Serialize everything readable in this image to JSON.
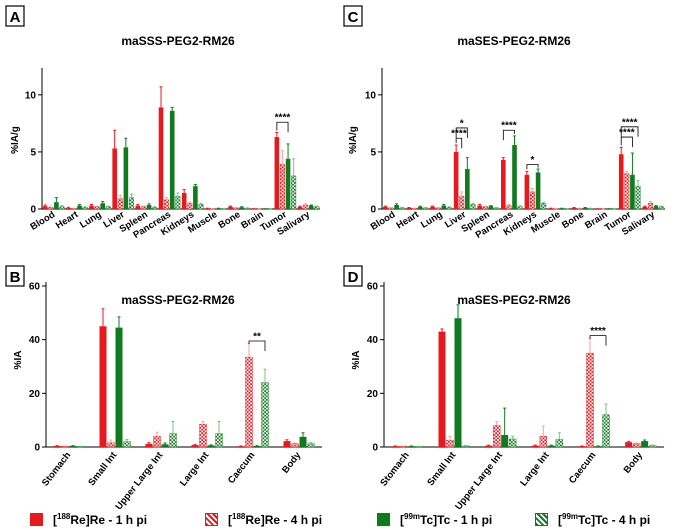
{
  "colors": {
    "re": "#e6191e",
    "tc": "#0f7a1e",
    "re_light": "#f4a3a3",
    "tc_light": "#7cc47f"
  },
  "legend": [
    {
      "pre": "[",
      "sup": "188",
      "post": "Re]Re - 1 h pi",
      "style": "solid",
      "color": "re"
    },
    {
      "pre": "[",
      "sup": "188",
      "post": "Re]Re - 4 h pi",
      "style": "hatched",
      "color": "re"
    },
    {
      "pre": "[",
      "sup": "99m",
      "post": "Tc]Tc - 1 h pi",
      "style": "solid",
      "color": "tc"
    },
    {
      "pre": "[",
      "sup": "99m",
      "post": "Tc]Tc - 4 h pi",
      "style": "hatched",
      "color": "tc"
    }
  ],
  "chart_data": [
    {
      "panel": "A",
      "type": "bar",
      "title": "maSSS-PEG2-RM26",
      "ylabel": "%IA/g",
      "ylim": [
        0,
        12
      ],
      "yticks": [
        0,
        5,
        10
      ],
      "categories": [
        "Blood",
        "Heart",
        "Lung",
        "Liver",
        "Spleen",
        "Pancreas",
        "Kidneys",
        "Muscle",
        "Bone",
        "Brain",
        "Tumor",
        "Salivary"
      ],
      "series": [
        {
          "name": "[188Re]Re - 1 h pi",
          "values": [
            0.25,
            0.1,
            0.3,
            5.3,
            0.3,
            8.9,
            1.4,
            0.05,
            0.2,
            0.02,
            6.3,
            0.2
          ],
          "errors": [
            0.1,
            0.05,
            0.1,
            1.6,
            0.1,
            1.8,
            0.3,
            0.02,
            0.05,
            0.01,
            0.4,
            0.05
          ]
        },
        {
          "name": "[188Re]Re - 4 h pi",
          "values": [
            0.15,
            0.05,
            0.2,
            0.9,
            0.2,
            0.8,
            0.5,
            0.02,
            0.1,
            0.01,
            3.9,
            0.35
          ],
          "errors": [
            0.05,
            0.02,
            0.05,
            0.3,
            0.05,
            0.2,
            0.1,
            0.01,
            0.03,
            0.01,
            1.2,
            0.1
          ]
        },
        {
          "name": "[99mTc]Tc - 1 h pi",
          "values": [
            0.6,
            0.3,
            0.5,
            5.4,
            0.35,
            8.6,
            2.0,
            0.05,
            0.15,
            0.02,
            4.4,
            0.3
          ],
          "errors": [
            0.4,
            0.1,
            0.15,
            0.8,
            0.1,
            0.3,
            0.15,
            0.02,
            0.05,
            0.01,
            1.3,
            0.05
          ]
        },
        {
          "name": "[99mTc]Tc - 4 h pi",
          "values": [
            0.2,
            0.15,
            0.2,
            1.0,
            0.15,
            1.1,
            0.4,
            0.02,
            0.08,
            0.01,
            2.9,
            0.2
          ],
          "errors": [
            0.1,
            0.05,
            0.05,
            0.3,
            0.05,
            0.3,
            0.1,
            0.01,
            0.02,
            0.01,
            1.5,
            0.05
          ]
        }
      ],
      "annotations": [
        {
          "category": "Tumor",
          "from_series": 0,
          "to_series": 2,
          "label": "****",
          "level": 7.6
        }
      ]
    },
    {
      "panel": "C",
      "type": "bar",
      "title": "maSES-PEG2-RM26",
      "ylabel": "%IA/g",
      "ylim": [
        0,
        12
      ],
      "yticks": [
        0,
        5,
        10
      ],
      "categories": [
        "Blood",
        "Heart",
        "Lung",
        "Liver",
        "Spleen",
        "Pancreas",
        "Kidneys",
        "Muscle",
        "Bone",
        "Brain",
        "Tumor",
        "Salivary"
      ],
      "series": [
        {
          "name": "[188Re]Re - 1 h pi",
          "values": [
            0.2,
            0.1,
            0.2,
            5.0,
            0.3,
            4.3,
            3.0,
            0.05,
            0.1,
            0.02,
            4.8,
            0.2
          ],
          "errors": [
            0.05,
            0.03,
            0.05,
            0.6,
            0.1,
            0.2,
            0.3,
            0.02,
            0.03,
            0.01,
            0.6,
            0.05
          ]
        },
        {
          "name": "[188Re]Re - 4 h pi",
          "values": [
            0.1,
            0.05,
            0.1,
            1.1,
            0.2,
            0.3,
            1.5,
            0.02,
            0.05,
            0.01,
            3.1,
            0.5
          ],
          "errors": [
            0.03,
            0.02,
            0.03,
            0.4,
            0.05,
            0.1,
            0.3,
            0.01,
            0.02,
            0.01,
            0.2,
            0.15
          ]
        },
        {
          "name": "[99mTc]Tc - 1 h pi",
          "values": [
            0.35,
            0.2,
            0.3,
            3.5,
            0.25,
            5.6,
            3.2,
            0.05,
            0.1,
            0.02,
            3.0,
            0.25
          ],
          "errors": [
            0.1,
            0.05,
            0.1,
            1.0,
            0.05,
            0.8,
            0.3,
            0.02,
            0.03,
            0.01,
            1.9,
            0.05
          ]
        },
        {
          "name": "[99mTc]Tc - 4 h pi",
          "values": [
            0.1,
            0.1,
            0.15,
            0.4,
            0.1,
            0.2,
            0.5,
            0.02,
            0.05,
            0.01,
            2.0,
            0.2
          ],
          "errors": [
            0.05,
            0.03,
            0.05,
            0.1,
            0.03,
            0.1,
            0.1,
            0.01,
            0.02,
            0.01,
            0.5,
            0.05
          ]
        }
      ],
      "annotations": [
        {
          "category": "Liver",
          "from_series": 0,
          "to_series": 2,
          "label": "*",
          "level": 7.1
        },
        {
          "category": "Liver",
          "from_series": 0,
          "to_series": 1,
          "label": "****",
          "level": 6.2
        },
        {
          "category": "Pancreas",
          "from_series": 0,
          "to_series": 2,
          "label": "****",
          "level": 6.9
        },
        {
          "category": "Kidneys",
          "from_series": 0,
          "to_series": 2,
          "label": "*",
          "level": 3.9
        },
        {
          "category": "Tumor",
          "from_series": 0,
          "to_series": 3,
          "label": "****",
          "level": 7.2
        },
        {
          "category": "Tumor",
          "from_series": 0,
          "to_series": 2,
          "label": "****",
          "level": 6.3
        }
      ]
    },
    {
      "panel": "B",
      "type": "bar",
      "title": "maSSS-PEG2-RM26",
      "ylabel": "%IA",
      "ylim": [
        0,
        60
      ],
      "yticks": [
        0,
        20,
        40,
        60
      ],
      "categories": [
        "Stomach",
        "Small Int",
        "Upper Large Int",
        "Large Int",
        "Caecum",
        "Body"
      ],
      "series": [
        {
          "name": "[188Re]Re - 1 h pi",
          "values": [
            0.4,
            45.0,
            1.2,
            0.7,
            0.3,
            2.2
          ],
          "errors": [
            0.1,
            6.5,
            0.4,
            0.2,
            0.1,
            0.5
          ]
        },
        {
          "name": "[188Re]Re - 4 h pi",
          "values": [
            0.3,
            1.6,
            4.0,
            8.5,
            33.5,
            1.2
          ],
          "errors": [
            0.1,
            1.0,
            1.5,
            1.0,
            5.0,
            0.3
          ]
        },
        {
          "name": "[99mTc]Tc - 1 h pi",
          "values": [
            0.4,
            44.5,
            1.0,
            0.6,
            0.4,
            3.8
          ],
          "errors": [
            0.1,
            4.0,
            0.5,
            0.2,
            0.1,
            1.5
          ]
        },
        {
          "name": "[99mTc]Tc - 4 h pi",
          "values": [
            0.2,
            2.0,
            5.0,
            5.0,
            24.0,
            1.2
          ],
          "errors": [
            0.1,
            0.8,
            4.5,
            4.5,
            5.0,
            0.5
          ]
        }
      ],
      "annotations": [
        {
          "category": "Caecum",
          "from_series": 1,
          "to_series": 3,
          "label": "**",
          "level": 39.5
        }
      ]
    },
    {
      "panel": "D",
      "type": "bar",
      "title": "maSES-PEG2-RM26",
      "ylabel": "%IA",
      "ylim": [
        0,
        60
      ],
      "yticks": [
        0,
        20,
        40,
        60
      ],
      "categories": [
        "Stomach",
        "Small Int",
        "Upper Large Int",
        "Large Int",
        "Caecum",
        "Body"
      ],
      "series": [
        {
          "name": "[188Re]Re - 1 h pi",
          "values": [
            0.3,
            43.0,
            0.5,
            0.5,
            0.3,
            1.8
          ],
          "errors": [
            0.1,
            1.0,
            0.2,
            0.2,
            0.1,
            0.3
          ]
        },
        {
          "name": "[188Re]Re - 4 h pi",
          "values": [
            0.3,
            2.5,
            8.0,
            4.0,
            35.0,
            1.2
          ],
          "errors": [
            0.1,
            1.5,
            1.5,
            3.8,
            5.5,
            0.3
          ]
        },
        {
          "name": "[99mTc]Tc - 1 h pi",
          "values": [
            0.3,
            48.0,
            4.5,
            0.5,
            0.3,
            2.2
          ],
          "errors": [
            0.1,
            5.0,
            10.0,
            0.2,
            0.1,
            0.4
          ]
        },
        {
          "name": "[99mTc]Tc - 4 h pi",
          "values": [
            0.2,
            0.4,
            3.0,
            2.8,
            12.0,
            0.5
          ],
          "errors": [
            0.1,
            0.2,
            1.0,
            2.5,
            4.0,
            0.2
          ]
        }
      ],
      "annotations": [
        {
          "category": "Caecum",
          "from_series": 1,
          "to_series": 3,
          "label": "****",
          "level": 41.5
        }
      ]
    }
  ]
}
